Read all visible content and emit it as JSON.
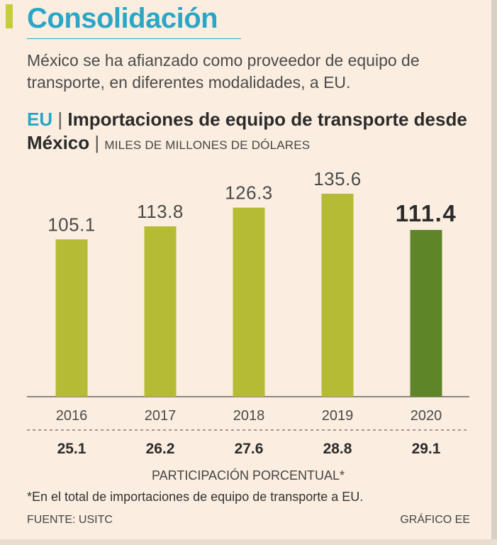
{
  "colors": {
    "accent_teal": "#2aa6c6",
    "bar_light": "#b5bb34",
    "bar_dark": "#5e8629",
    "highlight_bar": "#c7cc3a",
    "text_dark": "#2b2b2b"
  },
  "header": {
    "title": "Consolidación",
    "subtitle": "México se ha afianzado como proveedor de equipo de transporte, en diferentes modalidades, a EU."
  },
  "chart_head": {
    "country": "EU",
    "sep1": "|",
    "title": "Importaciones de equipo de transporte desde México",
    "sep2": "|",
    "units": "MILES DE MILLONES DE DÓLARES"
  },
  "chart_data": {
    "type": "bar",
    "title": "Importaciones de equipo de transporte desde México",
    "ylabel": "MILES DE MILLONES DE DÓLARES",
    "xlabel": "",
    "categories": [
      "2016",
      "2017",
      "2018",
      "2019",
      "2020"
    ],
    "values": [
      105.1,
      113.8,
      126.3,
      135.6,
      111.4
    ],
    "value_labels": [
      "105.1",
      "113.8",
      "126.3",
      "135.6",
      "111.4"
    ],
    "highlight_index": 4,
    "ylim": [
      0,
      135.6
    ],
    "grid": false,
    "share_label": "PARTICIPACIÓN PORCENTUAL*",
    "share_values": [
      "25.1",
      "26.2",
      "27.6",
      "28.8",
      "29.1"
    ]
  },
  "footer": {
    "footnote": "*En el total de importaciones de equipo de transporte a EU.",
    "source": "FUENTE: USITC",
    "credit": "GRÁFICO EE"
  }
}
